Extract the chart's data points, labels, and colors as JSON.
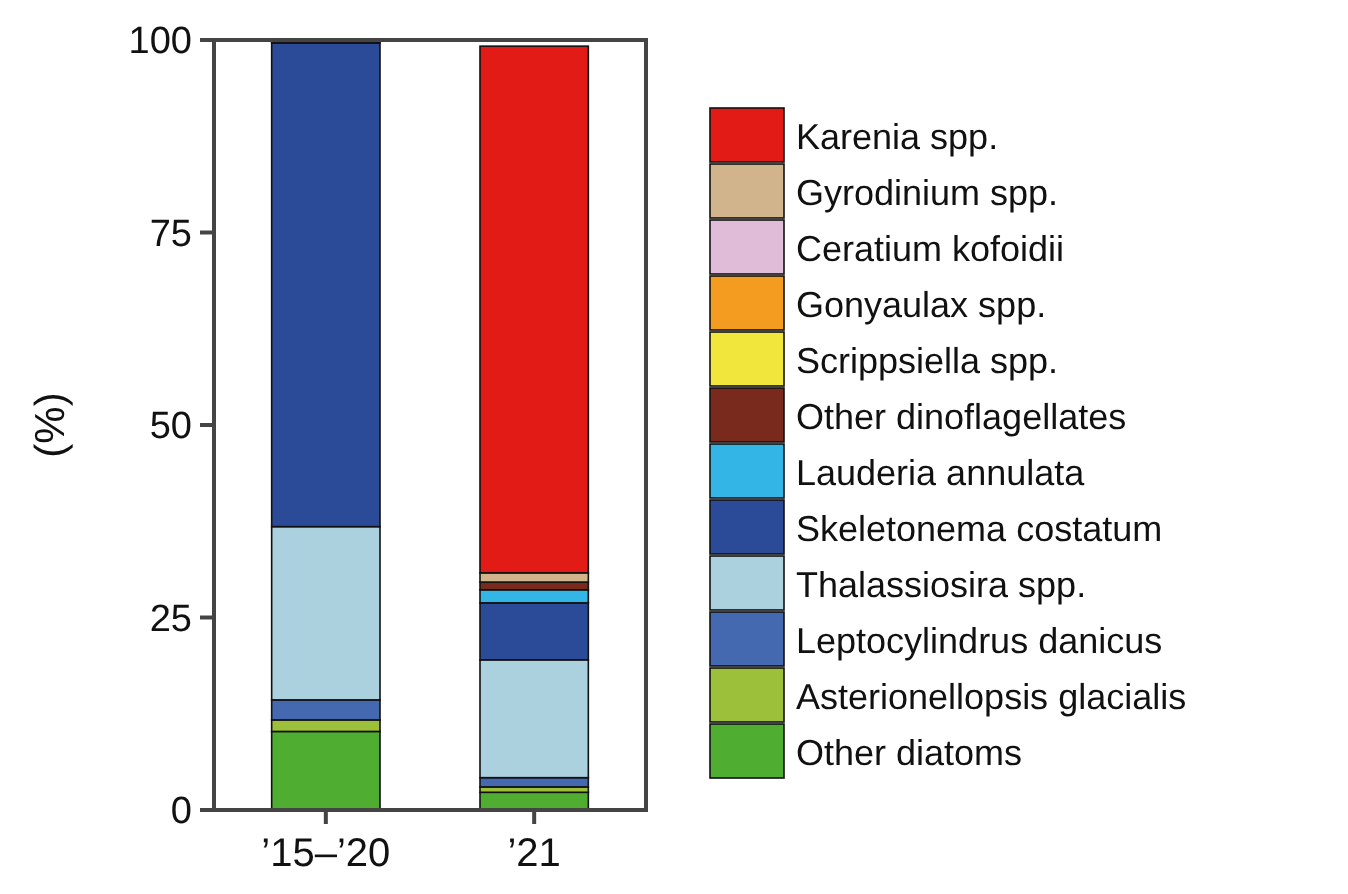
{
  "chart_data": {
    "type": "bar",
    "stacked": true,
    "ylabel": "(%)",
    "categories": [
      "’15–’20",
      "’21"
    ],
    "ylim": [
      0,
      100
    ],
    "yticks": [
      0,
      25,
      50,
      75,
      100
    ],
    "grid": false,
    "legend": "right",
    "series": [
      {
        "name": "Other diatoms",
        "color": "#4fae32",
        "values": [
          10.2,
          2.3
        ]
      },
      {
        "name": "Asterionellopsis glacialis",
        "color": "#9dc03b",
        "values": [
          1.5,
          0.7
        ]
      },
      {
        "name": "Leptocylindrus danicus",
        "color": "#4469b0",
        "values": [
          2.6,
          1.2
        ]
      },
      {
        "name": "Thalassiosira spp.",
        "color": "#abd0de",
        "values": [
          22.5,
          15.3
        ]
      },
      {
        "name": "Skeletonema costatum",
        "color": "#2b4b98",
        "values": [
          62.8,
          7.4
        ]
      },
      {
        "name": "Lauderia annulata",
        "color": "#33b5e5",
        "values": [
          0,
          1.7
        ]
      },
      {
        "name": "Other dinoflagellates",
        "color": "#7a2a1c",
        "values": [
          0.2,
          1.0
        ]
      },
      {
        "name": "Scrippsiella spp.",
        "color": "#f0e63c",
        "values": [
          0,
          null
        ]
      },
      {
        "name": "Gonyaulax spp.",
        "color": "#f39c1f",
        "values": [
          0,
          null
        ]
      },
      {
        "name": "Ceratium kofoidii",
        "color": "#e0bcd9",
        "values": [
          0,
          null
        ]
      },
      {
        "name": "Gyrodinium spp.",
        "color": "#d2b48c",
        "values": [
          0,
          1.2
        ]
      },
      {
        "name": "Karenia spp.",
        "color": "#e21b17",
        "values": [
          0,
          68.4
        ]
      }
    ]
  }
}
